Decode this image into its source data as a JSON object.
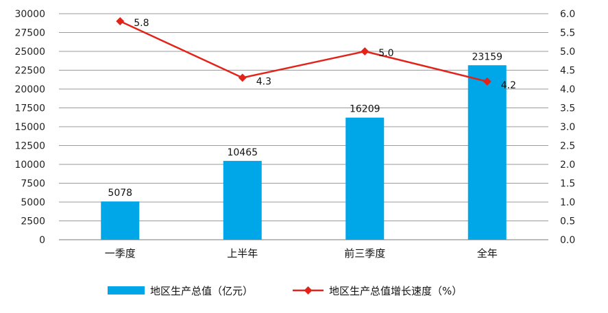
{
  "chart_data": {
    "type": "bar",
    "categories": [
      "一季度",
      "上半年",
      "前三季度",
      "全年"
    ],
    "series": [
      {
        "name": "地区生产总值（亿元）",
        "type": "bar",
        "axis": "left",
        "values": [
          5078,
          10465,
          16209,
          23159
        ],
        "data_labels": [
          "5078",
          "10465",
          "16209",
          "23159"
        ],
        "color": "#00A7E8"
      },
      {
        "name": "地区生产总值增长速度（%）",
        "type": "line",
        "axis": "right",
        "values": [
          5.8,
          4.3,
          5.0,
          4.2
        ],
        "data_labels": [
          "5.8",
          "4.3",
          "5.0",
          "4.2"
        ],
        "color": "#E2231A"
      }
    ],
    "y_left": {
      "ylim": [
        0,
        30000
      ],
      "ticks": [
        "0",
        "2500",
        "5000",
        "7500",
        "10000",
        "12500",
        "15000",
        "17500",
        "20000",
        "22500",
        "25000",
        "27500",
        "30000"
      ]
    },
    "y_right": {
      "ylim": [
        0,
        6
      ],
      "ticks": [
        "0.0",
        "0.5",
        "1.0",
        "1.5",
        "2.0",
        "2.5",
        "3.0",
        "3.5",
        "4.0",
        "4.5",
        "5.0",
        "5.5",
        "6.0"
      ]
    },
    "grid": true,
    "legend_position": "bottom"
  }
}
